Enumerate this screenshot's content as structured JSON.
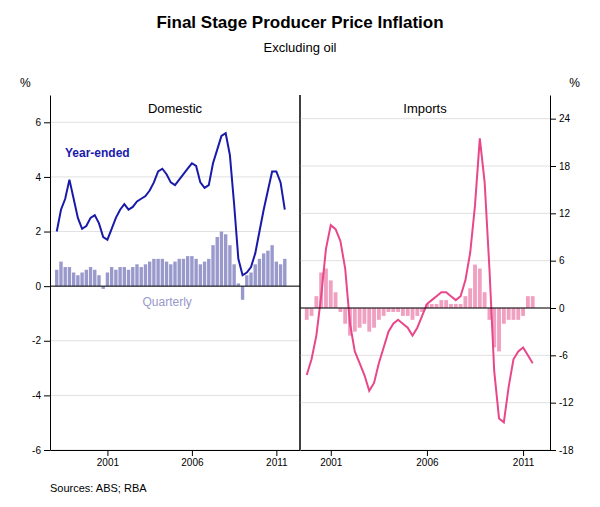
{
  "title": "Final Stage Producer Price Inflation",
  "subtitle": "Excluding oil",
  "source": "Sources: ABS; RBA",
  "chart_data": [
    {
      "type": "bar",
      "title": "Domestic",
      "ylabel": "%",
      "grid": true,
      "xlim": [
        1997.6,
        2012.4
      ],
      "xticks": [
        2001,
        2006,
        2011
      ],
      "ylim": [
        -6,
        7
      ],
      "yticks": [
        -6,
        -4,
        -2,
        0,
        2,
        4,
        6
      ],
      "x": [
        1998.0,
        1998.25,
        1998.5,
        1998.75,
        1999.0,
        1999.25,
        1999.5,
        1999.75,
        2000.0,
        2000.25,
        2000.5,
        2000.75,
        2001.0,
        2001.25,
        2001.5,
        2001.75,
        2002.0,
        2002.25,
        2002.5,
        2002.75,
        2003.0,
        2003.25,
        2003.5,
        2003.75,
        2004.0,
        2004.25,
        2004.5,
        2004.75,
        2005.0,
        2005.25,
        2005.5,
        2005.75,
        2006.0,
        2006.25,
        2006.5,
        2006.75,
        2007.0,
        2007.25,
        2007.5,
        2007.75,
        2008.0,
        2008.25,
        2008.5,
        2008.75,
        2009.0,
        2009.25,
        2009.5,
        2009.75,
        2010.0,
        2010.25,
        2010.5,
        2010.75,
        2011.0,
        2011.25,
        2011.5
      ],
      "series": [
        {
          "name": "Quarterly",
          "type": "bar",
          "color": "#9999cc",
          "values": [
            0.6,
            0.9,
            0.7,
            0.7,
            0.5,
            0.4,
            0.5,
            0.6,
            0.7,
            0.6,
            0.4,
            -0.1,
            0.5,
            0.7,
            0.6,
            0.7,
            0.7,
            0.6,
            0.7,
            0.8,
            0.7,
            0.8,
            0.9,
            1.0,
            1.0,
            1.0,
            0.9,
            0.8,
            0.9,
            1.0,
            1.0,
            1.1,
            1.1,
            1.0,
            0.8,
            0.9,
            1.0,
            1.5,
            1.8,
            2.0,
            1.9,
            1.5,
            0.8,
            0.1,
            -0.5,
            0.4,
            0.5,
            0.8,
            1.0,
            1.2,
            1.3,
            1.5,
            0.9,
            0.8,
            1.0
          ]
        },
        {
          "name": "Year-ended",
          "type": "line",
          "color": "#1a1aaa",
          "values": [
            2.0,
            2.8,
            3.2,
            3.9,
            3.2,
            2.5,
            2.1,
            2.2,
            2.5,
            2.6,
            2.3,
            1.8,
            1.7,
            2.1,
            2.5,
            2.8,
            3.0,
            2.8,
            2.9,
            3.1,
            3.2,
            3.3,
            3.5,
            3.8,
            4.2,
            4.3,
            4.1,
            3.8,
            3.7,
            3.9,
            4.1,
            4.3,
            4.5,
            4.4,
            3.8,
            3.6,
            3.7,
            4.5,
            5.0,
            5.5,
            5.6,
            4.8,
            3.0,
            1.0,
            0.4,
            0.5,
            0.7,
            1.2,
            2.0,
            2.8,
            3.5,
            4.2,
            4.2,
            3.8,
            2.8
          ]
        }
      ]
    },
    {
      "type": "bar",
      "title": "Imports",
      "ylabel": "%",
      "grid": true,
      "xlim": [
        1999.4,
        2012.4
      ],
      "xticks": [
        2001,
        2006,
        2011
      ],
      "ylim": [
        -18,
        27
      ],
      "yticks": [
        -18,
        -12,
        -6,
        0,
        6,
        12,
        18,
        24
      ],
      "x": [
        1999.75,
        2000.0,
        2000.25,
        2000.5,
        2000.75,
        2001.0,
        2001.25,
        2001.5,
        2001.75,
        2002.0,
        2002.25,
        2002.5,
        2002.75,
        2003.0,
        2003.25,
        2003.5,
        2003.75,
        2004.0,
        2004.25,
        2004.5,
        2004.75,
        2005.0,
        2005.25,
        2005.5,
        2005.75,
        2006.0,
        2006.25,
        2006.5,
        2006.75,
        2007.0,
        2007.25,
        2007.5,
        2007.75,
        2008.0,
        2008.25,
        2008.5,
        2008.75,
        2009.0,
        2009.25,
        2009.5,
        2009.75,
        2010.0,
        2010.25,
        2010.5,
        2010.75,
        2011.0,
        2011.25,
        2011.5
      ],
      "series": [
        {
          "type": "bar",
          "color": "#f0a0c0",
          "values": [
            -1.5,
            -1.0,
            1.5,
            4.5,
            5.0,
            3.5,
            2.0,
            -0.5,
            -2.0,
            -3.5,
            -3.0,
            -2.5,
            -2.0,
            -3.0,
            -2.5,
            -1.5,
            -1.0,
            -0.5,
            -0.5,
            -0.5,
            -1.0,
            -1.0,
            -1.5,
            -1.0,
            -0.5,
            0.5,
            0.5,
            0.5,
            1.0,
            1.0,
            0.5,
            0.5,
            0.5,
            1.5,
            2.5,
            5.5,
            5.0,
            2.0,
            -1.5,
            -5.0,
            -5.5,
            -2.0,
            -1.5,
            -1.5,
            -1.5,
            -1.0,
            1.5,
            1.5
          ]
        },
        {
          "type": "line",
          "color": "#e8488a",
          "values": [
            -8.5,
            -6.5,
            -3.5,
            1.5,
            7.5,
            10.5,
            10.0,
            8.5,
            5.0,
            -2.0,
            -5.5,
            -7.0,
            -8.5,
            -10.5,
            -9.5,
            -7.0,
            -5.0,
            -3.0,
            -2.0,
            -1.5,
            -2.0,
            -2.5,
            -3.5,
            -2.5,
            -1.0,
            0.5,
            1.0,
            1.5,
            2.0,
            2.0,
            1.5,
            1.0,
            1.5,
            3.5,
            7.0,
            13.0,
            21.5,
            16.0,
            5.0,
            -8.0,
            -14.0,
            -14.5,
            -10.0,
            -6.5,
            -5.5,
            -5.0,
            -6.0,
            -7.0
          ]
        }
      ]
    }
  ]
}
